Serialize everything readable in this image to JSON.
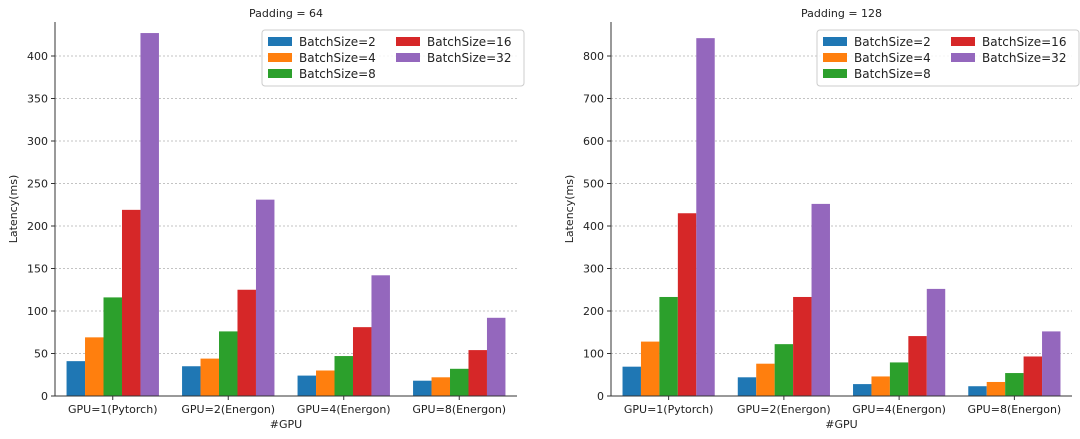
{
  "chart_data": [
    {
      "type": "bar",
      "title": "Padding = 64",
      "xlabel": "#GPU",
      "ylabel": "Latency(ms)",
      "categories": [
        "GPU=1(Pytorch)",
        "GPU=2(Energon)",
        "GPU=4(Energon)",
        "GPU=8(Energon)"
      ],
      "ylim": [
        0,
        440
      ],
      "yticks": [
        0,
        50,
        100,
        150,
        200,
        250,
        300,
        350,
        400
      ],
      "grid": "y-dotted",
      "legend_position": "top-right",
      "series": [
        {
          "name": "BatchSize=2",
          "color": "#1f77b4",
          "values": [
            41,
            35,
            24,
            18
          ]
        },
        {
          "name": "BatchSize=4",
          "color": "#ff7f0e",
          "values": [
            69,
            44,
            30,
            22
          ]
        },
        {
          "name": "BatchSize=8",
          "color": "#2ca02c",
          "values": [
            116,
            76,
            47,
            32
          ]
        },
        {
          "name": "BatchSize=16",
          "color": "#d62728",
          "values": [
            219,
            125,
            81,
            54
          ]
        },
        {
          "name": "BatchSize=32",
          "color": "#9467bd",
          "values": [
            427,
            231,
            142,
            92
          ]
        }
      ]
    },
    {
      "type": "bar",
      "title": "Padding = 128",
      "xlabel": "#GPU",
      "ylabel": "Latency(ms)",
      "categories": [
        "GPU=1(Pytorch)",
        "GPU=2(Energon)",
        "GPU=4(Energon)",
        "GPU=8(Energon)"
      ],
      "ylim": [
        0,
        880
      ],
      "yticks": [
        0,
        100,
        200,
        300,
        400,
        500,
        600,
        700,
        800
      ],
      "grid": "y-dotted",
      "legend_position": "top-right",
      "series": [
        {
          "name": "BatchSize=2",
          "color": "#1f77b4",
          "values": [
            69,
            44,
            28,
            23
          ]
        },
        {
          "name": "BatchSize=4",
          "color": "#ff7f0e",
          "values": [
            128,
            76,
            46,
            33
          ]
        },
        {
          "name": "BatchSize=8",
          "color": "#2ca02c",
          "values": [
            233,
            122,
            79,
            54
          ]
        },
        {
          "name": "BatchSize=16",
          "color": "#d62728",
          "values": [
            430,
            233,
            141,
            93
          ]
        },
        {
          "name": "BatchSize=32",
          "color": "#9467bd",
          "values": [
            842,
            452,
            252,
            152
          ]
        }
      ]
    }
  ]
}
